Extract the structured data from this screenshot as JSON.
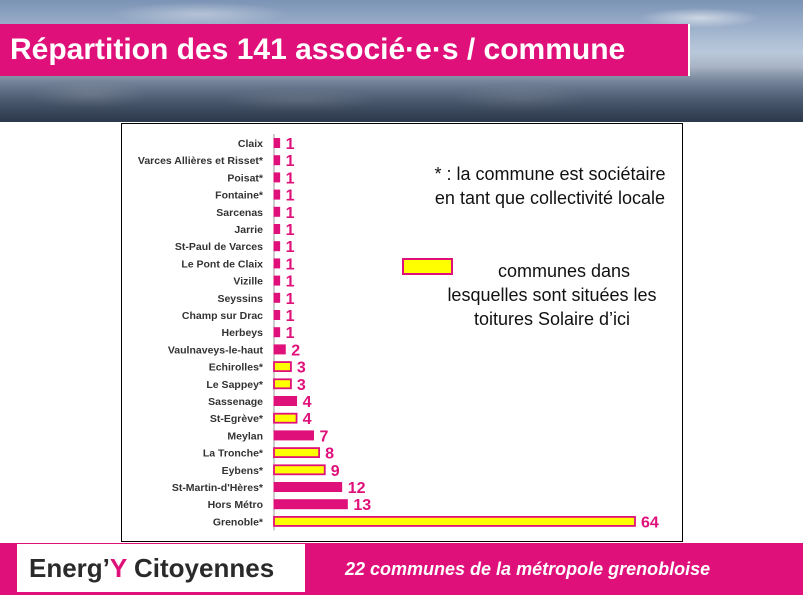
{
  "header": {
    "title": "Répartition des 141 associé·e·s / commune"
  },
  "note": {
    "text": "* : la commune est sociétaire en tant que collectivité locale"
  },
  "legend": {
    "text": "communes dans lesquelles sont situées les toitures Solaire d’ici",
    "swatch_color": "#ffff00",
    "border_color": "#e0107a"
  },
  "footer": {
    "logo_pre": "Energ’",
    "logo_y": "Y",
    "logo_post": " Citoyennes",
    "caption": "22 communes de la métropole grenobloise"
  },
  "colors": {
    "accent": "#e0107a",
    "highlight": "#ffff00",
    "value_label": "#e0107a"
  },
  "chart_data": {
    "type": "bar",
    "orientation": "horizontal",
    "categories": [
      "Claix",
      "Varces Allières et Risset*",
      "Poisat*",
      "Fontaine*",
      "Sarcenas",
      "Jarrie",
      "St-Paul de Varces",
      "Le Pont de Claix",
      "Vizille",
      "Seyssins",
      "Champ sur Drac",
      "Herbeys",
      "Vaulnaveys-le-haut",
      "Echirolles*",
      "Le Sappey*",
      "Sassenage",
      "St-Egrève*",
      "Meylan",
      "La Tronche*",
      "Eybens*",
      "St-Martin-d'Hères*",
      "Hors Métro",
      "Grenoble*"
    ],
    "values": [
      1,
      1,
      1,
      1,
      1,
      1,
      1,
      1,
      1,
      1,
      1,
      1,
      2,
      3,
      3,
      4,
      4,
      7,
      8,
      9,
      12,
      13,
      64
    ],
    "has_solar_roofs": [
      false,
      false,
      false,
      false,
      false,
      false,
      false,
      false,
      false,
      false,
      false,
      false,
      false,
      true,
      true,
      false,
      true,
      false,
      true,
      true,
      false,
      false,
      true
    ],
    "xlim": [
      0,
      64
    ],
    "grid": false,
    "legend_position": "right"
  }
}
